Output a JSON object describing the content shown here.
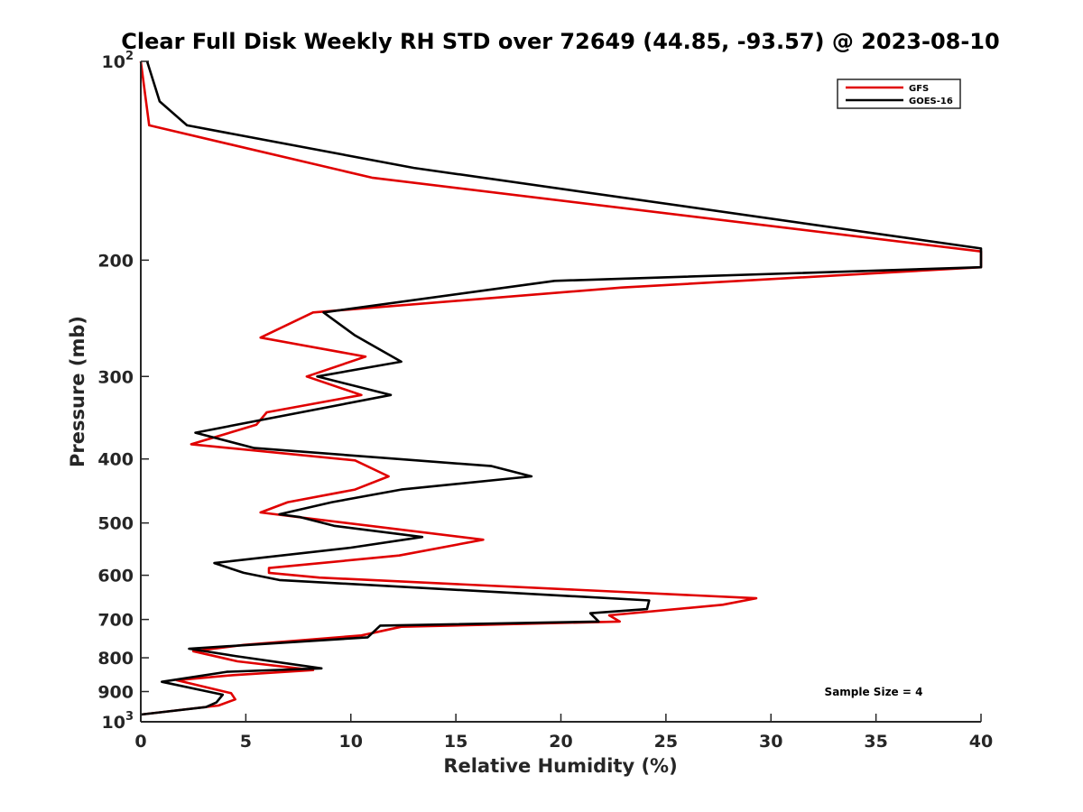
{
  "chart_data": {
    "type": "line",
    "title": "Clear Full Disk Weekly RH STD over 72649 (44.85, -93.57) @ 2023-08-10",
    "xlabel": "Relative Humidity (%)",
    "ylabel": "Pressure (mb)",
    "xlim": [
      0,
      40
    ],
    "ylim": [
      100,
      1000
    ],
    "y_scale": "log",
    "y_reversed": true,
    "grid": false,
    "x_ticks": [
      0,
      5,
      10,
      15,
      20,
      25,
      30,
      35,
      40
    ],
    "x_tick_labels": [
      "0",
      "5",
      "10",
      "15",
      "20",
      "25",
      "30",
      "35",
      "40"
    ],
    "y_ticks": [
      100,
      200,
      300,
      400,
      500,
      600,
      700,
      800,
      900,
      1000
    ],
    "y_tick_labels": [
      {
        "base": "10",
        "exp": "2"
      },
      {
        "base": "200",
        "exp": ""
      },
      {
        "base": "300",
        "exp": ""
      },
      {
        "base": "400",
        "exp": ""
      },
      {
        "base": "500",
        "exp": ""
      },
      {
        "base": "600",
        "exp": ""
      },
      {
        "base": "700",
        "exp": ""
      },
      {
        "base": "800",
        "exp": ""
      },
      {
        "base": "900",
        "exp": ""
      },
      {
        "base": "10",
        "exp": "3"
      }
    ],
    "legend_position": "top-right",
    "annotation": "Sample Size = 4",
    "series": [
      {
        "name": "GFS",
        "color": "#e00000",
        "points": [
          [
            0.0,
            100
          ],
          [
            0.4,
            125
          ],
          [
            11.0,
            150
          ],
          [
            40.0,
            194
          ],
          [
            40.0,
            205
          ],
          [
            22.9,
            220
          ],
          [
            8.2,
            240
          ],
          [
            5.7,
            262
          ],
          [
            10.7,
            280
          ],
          [
            7.9,
            300
          ],
          [
            10.5,
            320
          ],
          [
            6.0,
            340
          ],
          [
            5.5,
            355
          ],
          [
            2.4,
            380
          ],
          [
            10.2,
            402
          ],
          [
            11.8,
            425
          ],
          [
            10.2,
            445
          ],
          [
            7.0,
            465
          ],
          [
            5.7,
            482
          ],
          [
            16.3,
            530
          ],
          [
            12.3,
            560
          ],
          [
            6.1,
            585
          ],
          [
            6.1,
            595
          ],
          [
            8.5,
            605
          ],
          [
            29.3,
            650
          ],
          [
            27.7,
            665
          ],
          [
            22.3,
            690
          ],
          [
            22.8,
            705
          ],
          [
            12.4,
            718
          ],
          [
            10.5,
            740
          ],
          [
            4.9,
            765
          ],
          [
            2.5,
            782
          ],
          [
            4.6,
            810
          ],
          [
            8.2,
            835
          ],
          [
            4.4,
            850
          ],
          [
            1.7,
            865
          ],
          [
            4.3,
            905
          ],
          [
            4.5,
            925
          ],
          [
            3.7,
            945
          ],
          [
            0.0,
            975
          ]
        ]
      },
      {
        "name": "GOES-16",
        "color": "#000000",
        "points": [
          [
            0.3,
            100
          ],
          [
            0.9,
            115
          ],
          [
            2.2,
            125
          ],
          [
            13.0,
            145
          ],
          [
            40.0,
            192
          ],
          [
            40.0,
            205
          ],
          [
            19.7,
            215
          ],
          [
            8.7,
            240
          ],
          [
            10.2,
            260
          ],
          [
            12.4,
            285
          ],
          [
            8.4,
            300
          ],
          [
            11.9,
            320
          ],
          [
            2.6,
            365
          ],
          [
            5.4,
            385
          ],
          [
            16.7,
            410
          ],
          [
            18.6,
            425
          ],
          [
            12.4,
            445
          ],
          [
            9.1,
            465
          ],
          [
            6.6,
            485
          ],
          [
            7.6,
            490
          ],
          [
            9.2,
            505
          ],
          [
            13.4,
            525
          ],
          [
            10.0,
            545
          ],
          [
            3.5,
            575
          ],
          [
            4.9,
            595
          ],
          [
            6.6,
            610
          ],
          [
            24.2,
            655
          ],
          [
            24.1,
            675
          ],
          [
            21.4,
            685
          ],
          [
            21.8,
            705
          ],
          [
            11.4,
            715
          ],
          [
            10.8,
            745
          ],
          [
            2.3,
            775
          ],
          [
            4.5,
            795
          ],
          [
            8.6,
            830
          ],
          [
            4.1,
            840
          ],
          [
            1.0,
            870
          ],
          [
            3.9,
            910
          ],
          [
            3.6,
            935
          ],
          [
            3.1,
            950
          ],
          [
            0.0,
            975
          ]
        ]
      }
    ]
  }
}
